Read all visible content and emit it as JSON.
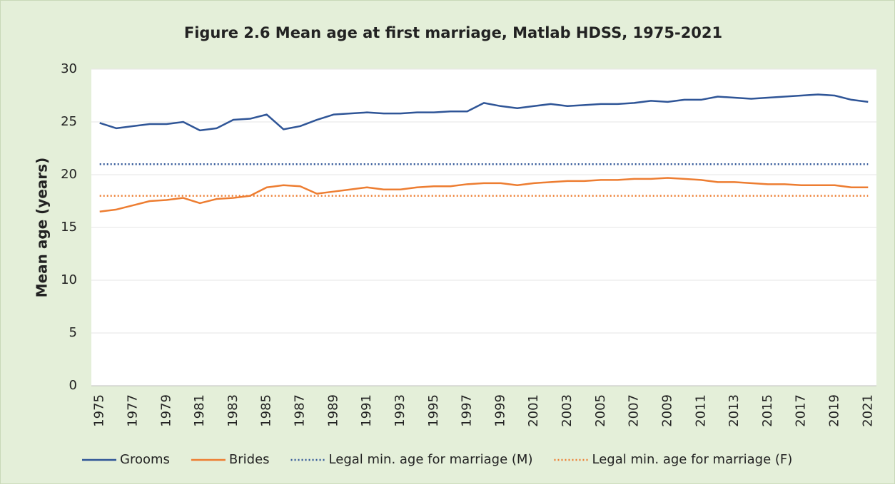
{
  "chart_data": {
    "type": "line",
    "title": "Figure 2.6 Mean age at first marriage, Matlab HDSS, 1975-2021",
    "y_label": "Mean age (years)",
    "categories": [
      "1975",
      null,
      "1977",
      null,
      "1979",
      null,
      "1981",
      null,
      "1983",
      null,
      "1985",
      null,
      "1987",
      null,
      "1989",
      null,
      "1991",
      null,
      "1993",
      null,
      "1995",
      null,
      "1997",
      null,
      "1999",
      null,
      "2001",
      null,
      "2003",
      null,
      "2005",
      null,
      "2007",
      null,
      "2009",
      null,
      "2011",
      null,
      "2013",
      null,
      "2015",
      null,
      "2017",
      null,
      "2019",
      null,
      "2021"
    ],
    "series": [
      {
        "name": "Grooms",
        "color": "#2f5597",
        "dashed": false,
        "values": [
          24.9,
          24.4,
          24.6,
          24.8,
          24.8,
          25.0,
          24.2,
          24.4,
          25.2,
          25.3,
          25.7,
          24.3,
          24.6,
          25.2,
          25.7,
          25.8,
          25.9,
          25.8,
          25.8,
          25.9,
          25.9,
          26.0,
          26.0,
          26.8,
          26.5,
          26.3,
          26.5,
          26.7,
          26.5,
          26.6,
          26.7,
          26.7,
          26.8,
          27.0,
          26.9,
          27.1,
          27.1,
          27.4,
          27.3,
          27.2,
          27.3,
          27.4,
          27.5,
          27.6,
          27.5,
          27.1,
          26.9
        ]
      },
      {
        "name": "Brides",
        "color": "#ed7d31",
        "dashed": false,
        "values": [
          16.5,
          16.7,
          17.1,
          17.5,
          17.6,
          17.8,
          17.3,
          17.7,
          17.8,
          18.0,
          18.8,
          19.0,
          18.9,
          18.2,
          18.4,
          18.6,
          18.8,
          18.6,
          18.6,
          18.8,
          18.9,
          18.9,
          19.1,
          19.2,
          19.2,
          19.0,
          19.2,
          19.3,
          19.4,
          19.4,
          19.5,
          19.5,
          19.6,
          19.6,
          19.7,
          19.6,
          19.5,
          19.3,
          19.3,
          19.2,
          19.1,
          19.1,
          19.0,
          19.0,
          19.0,
          18.8,
          18.8
        ]
      },
      {
        "name": "Legal min. age for marriage (M)",
        "color": "#2f5597",
        "dashed": true,
        "values": [
          21,
          21,
          21,
          21,
          21,
          21,
          21,
          21,
          21,
          21,
          21,
          21,
          21,
          21,
          21,
          21,
          21,
          21,
          21,
          21,
          21,
          21,
          21,
          21,
          21,
          21,
          21,
          21,
          21,
          21,
          21,
          21,
          21,
          21,
          21,
          21,
          21,
          21,
          21,
          21,
          21,
          21,
          21,
          21,
          21,
          21,
          21
        ]
      },
      {
        "name": "Legal min. age for marriage (F)",
        "color": "#ed7d31",
        "dashed": true,
        "values": [
          18,
          18,
          18,
          18,
          18,
          18,
          18,
          18,
          18,
          18,
          18,
          18,
          18,
          18,
          18,
          18,
          18,
          18,
          18,
          18,
          18,
          18,
          18,
          18,
          18,
          18,
          18,
          18,
          18,
          18,
          18,
          18,
          18,
          18,
          18,
          18,
          18,
          18,
          18,
          18,
          18,
          18,
          18,
          18,
          18,
          18,
          18
        ]
      }
    ],
    "ylim": [
      0,
      30
    ],
    "yticks": [
      0,
      5,
      10,
      15,
      20,
      25,
      30
    ],
    "grid": true,
    "legend": "bottom"
  }
}
